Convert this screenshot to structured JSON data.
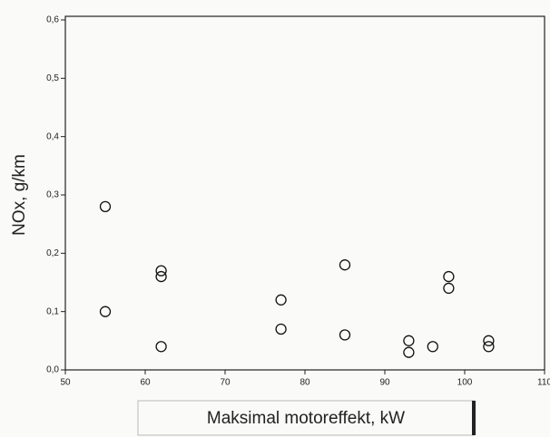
{
  "chart_data": {
    "type": "scatter",
    "ylabel": "NOx, g/km",
    "xlabel": "Maksimal motoreffekt, kW",
    "series": [
      {
        "color": "#111111",
        "x": [
          55,
          55,
          62,
          62,
          62,
          77,
          77,
          85,
          85,
          93,
          93,
          96,
          98,
          98,
          103,
          103
        ],
        "values": [
          0.28,
          0.1,
          0.17,
          0.16,
          0.04,
          0.12,
          0.07,
          0.18,
          0.06,
          0.05,
          0.03,
          0.04,
          0.16,
          0.14,
          0.05,
          0.04
        ]
      }
    ],
    "xlim": [
      50,
      110
    ],
    "xticks": [
      50,
      60,
      70,
      80,
      90,
      100,
      110
    ],
    "ylim": [
      0,
      0.6
    ],
    "yticks": [
      {
        "value": 0,
        "label": "0,0"
      },
      {
        "value": 0.1,
        "label": "0,1"
      },
      {
        "value": 0.2,
        "label": "0,2"
      },
      {
        "value": 0.3,
        "label": "0,3"
      },
      {
        "value": 0.4,
        "label": "0,4"
      },
      {
        "value": 0.5,
        "label": "0,5"
      },
      {
        "value": 0.6,
        "label": "0,6"
      }
    ],
    "grid": false
  }
}
